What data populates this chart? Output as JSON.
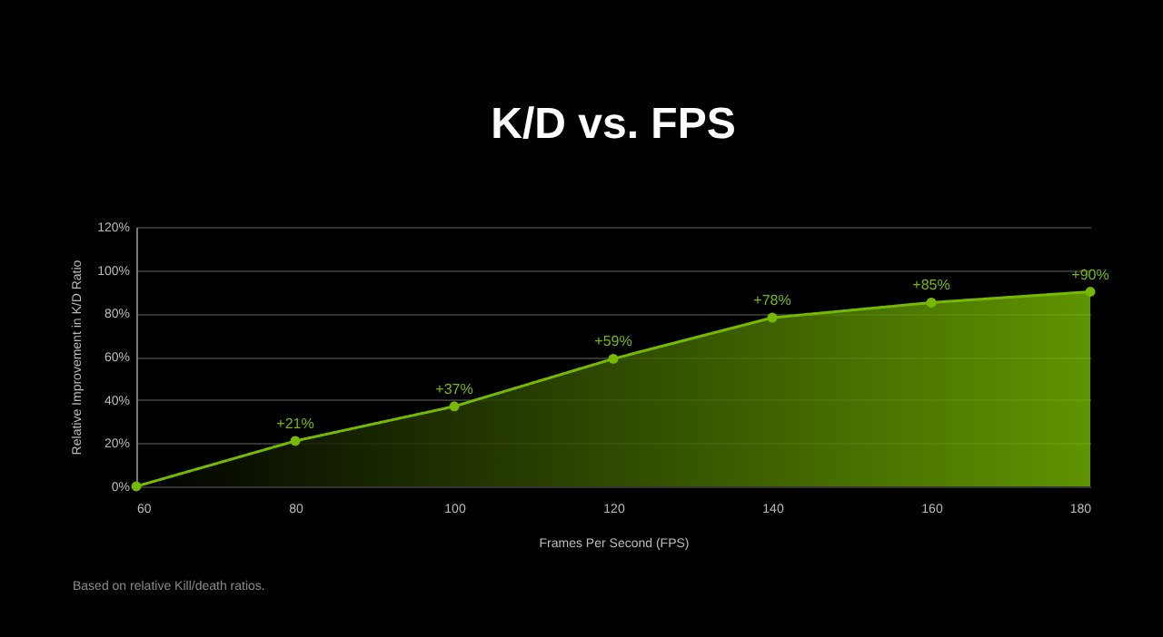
{
  "chart_data": {
    "type": "area",
    "title": "K/D vs. FPS",
    "xlabel": "Frames Per Second (FPS)",
    "ylabel": "Relative Improvement in K/D Ratio",
    "x": [
      60,
      80,
      100,
      120,
      140,
      160,
      180
    ],
    "series": [
      {
        "color": "#76b900",
        "values": [
          0,
          21,
          37,
          59,
          78,
          85,
          90
        ],
        "value_labels": [
          null,
          "+21%",
          "+37%",
          "+59%",
          "+78%",
          "+85%",
          "+90%"
        ]
      }
    ],
    "xlim": [
      60,
      180
    ],
    "xticks": [
      60,
      80,
      100,
      120,
      140,
      160,
      180
    ],
    "ylim": [
      0,
      120
    ],
    "yticks": [
      {
        "value": 0,
        "label": "0%"
      },
      {
        "value": 20,
        "label": "20%"
      },
      {
        "value": 40,
        "label": "40%"
      },
      {
        "value": 60,
        "label": "60%"
      },
      {
        "value": 80,
        "label": "80%"
      },
      {
        "value": 100,
        "label": "100%"
      },
      {
        "value": 120,
        "label": "120%"
      }
    ],
    "grid": "y",
    "marker": "circle",
    "annotations": [
      "Based on relative Kill/death ratios."
    ]
  }
}
